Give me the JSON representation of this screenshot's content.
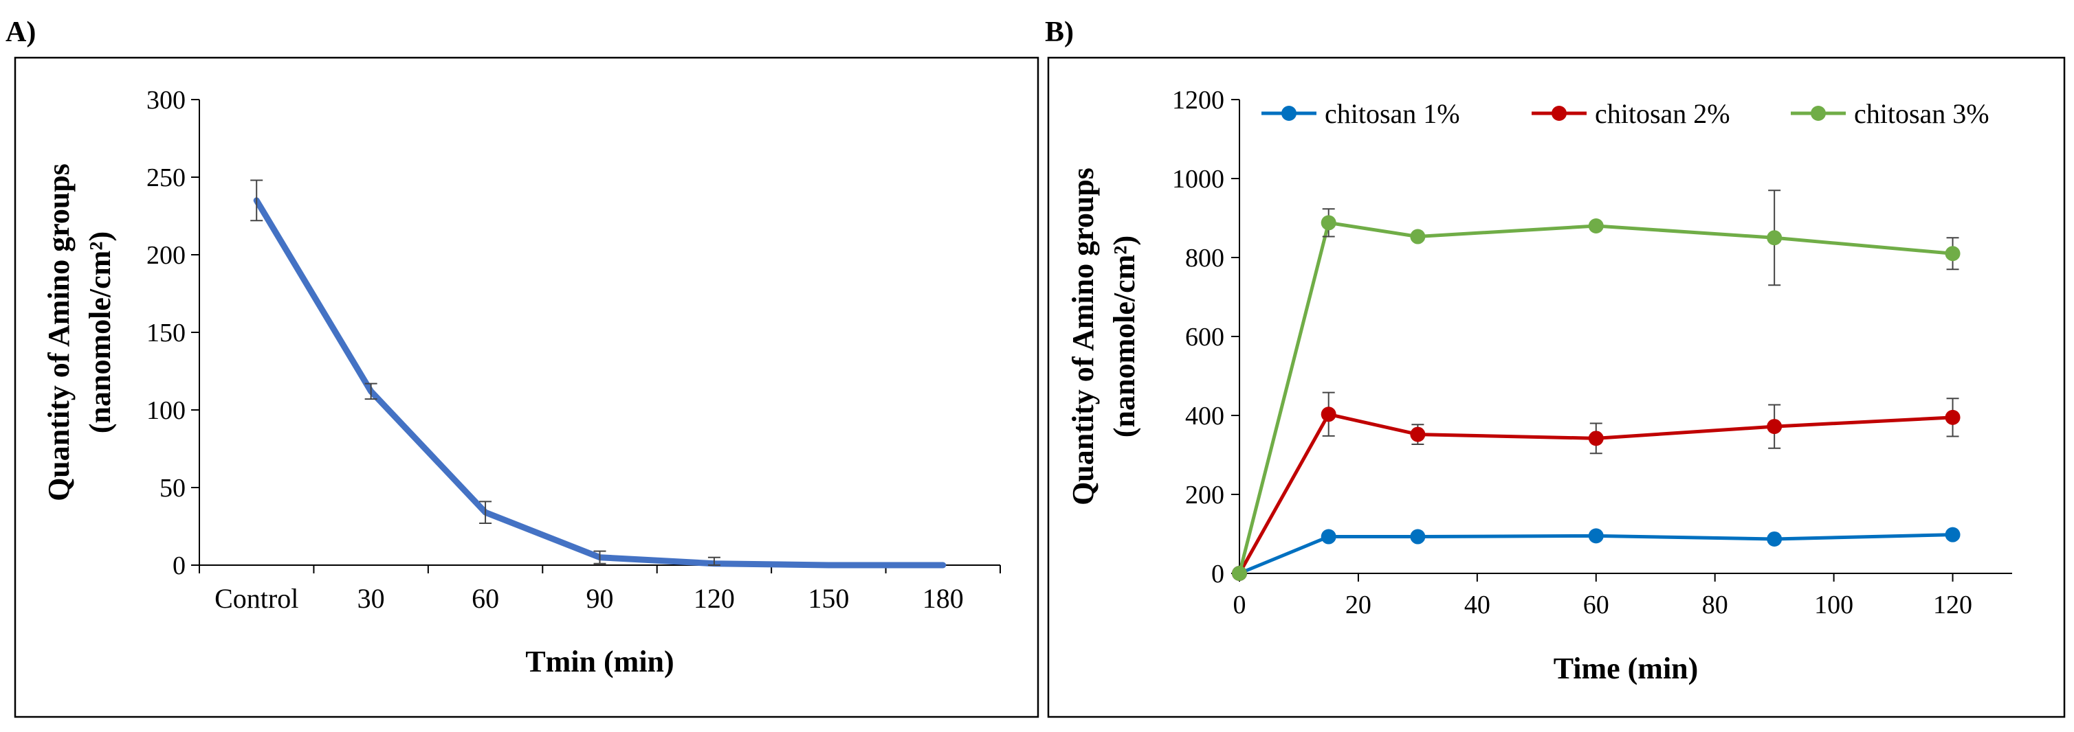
{
  "panels": [
    {
      "label": "A)"
    },
    {
      "label": "B)"
    }
  ],
  "chart_data": [
    {
      "type": "line",
      "panel": "A)",
      "categories": [
        "Control",
        "30",
        "60",
        "90",
        "120",
        "150",
        "180"
      ],
      "series": [
        {
          "name": "Amino groups",
          "color": "#4472C4",
          "values": [
            235,
            112,
            34,
            5,
            1,
            0,
            0
          ],
          "errors": [
            13,
            5,
            7,
            4,
            4,
            0,
            0
          ]
        }
      ],
      "title": "",
      "xlabel": "Tmin (min)",
      "ylabel_line1": "Quantity of Amino groups",
      "ylabel_line2": "(nanomole/cm²)",
      "ylim": [
        0,
        300
      ],
      "yticks": [
        0,
        50,
        100,
        150,
        200,
        250,
        300
      ],
      "legend": "none",
      "grid": false
    },
    {
      "type": "line",
      "panel": "B)",
      "x": [
        0,
        15,
        30,
        60,
        90,
        120
      ],
      "series": [
        {
          "name": "chitosan 1%",
          "color": "#0070C0",
          "values": [
            0,
            93,
            93,
            95,
            87,
            98
          ],
          "errors": [
            0,
            0,
            0,
            0,
            0,
            0
          ]
        },
        {
          "name": "chitosan 2%",
          "color": "#C00000",
          "values": [
            0,
            403,
            352,
            342,
            372,
            395
          ],
          "errors": [
            0,
            55,
            25,
            38,
            55,
            48
          ]
        },
        {
          "name": "chitosan 3%",
          "color": "#70AD47",
          "values": [
            0,
            888,
            853,
            880,
            850,
            810
          ],
          "errors": [
            0,
            35,
            0,
            0,
            120,
            40
          ]
        }
      ],
      "title": "",
      "xlabel": "Time (min)",
      "ylabel_line1": "Quantity of Amino groups",
      "ylabel_line2": "(nanomole/cm²)",
      "xlim": [
        0,
        130
      ],
      "xticks": [
        0,
        20,
        40,
        60,
        80,
        100,
        120
      ],
      "ylim": [
        0,
        1200
      ],
      "yticks": [
        0,
        200,
        400,
        600,
        800,
        1000,
        1200
      ],
      "legend": "top",
      "grid": false
    }
  ]
}
